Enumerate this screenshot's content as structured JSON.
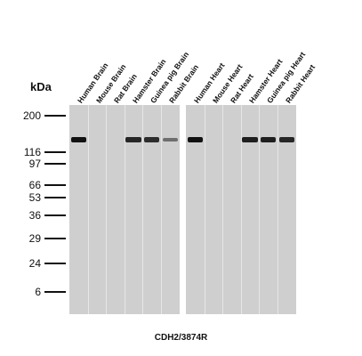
{
  "unit_label": "kDa",
  "caption": "CDH2/3874R",
  "markers": [
    {
      "label": "200",
      "kda": 200
    },
    {
      "label": "116",
      "kda": 116
    },
    {
      "label": "97",
      "kda": 97
    },
    {
      "label": "66",
      "kda": 66
    },
    {
      "label": "53",
      "kda": 53
    },
    {
      "label": "36",
      "kda": 36
    },
    {
      "label": "29",
      "kda": 29
    },
    {
      "label": "24",
      "kda": 24
    },
    {
      "label": "6",
      "kda": 6
    }
  ],
  "panels": [
    {
      "lanes": [
        {
          "label": "Human Brain",
          "band_intensity": 1.0
        },
        {
          "label": "Mouse Brain",
          "band_intensity": 0
        },
        {
          "label": "Rat Brain",
          "band_intensity": 0
        },
        {
          "label": "Hamster Brain",
          "band_intensity": 0.85
        },
        {
          "label": "Guinea pig Brain",
          "band_intensity": 0.8
        },
        {
          "label": "Rabbit Brain",
          "band_intensity": 0.35
        }
      ]
    },
    {
      "lanes": [
        {
          "label": "Human Heart",
          "band_intensity": 1.0
        },
        {
          "label": "Mouse Heart",
          "band_intensity": 0
        },
        {
          "label": "Rat Heart",
          "band_intensity": 0
        },
        {
          "label": "Hamster Heart",
          "band_intensity": 0.9
        },
        {
          "label": "Guinea pig Heart",
          "band_intensity": 0.9
        },
        {
          "label": "Rabbit Heart",
          "band_intensity": 0.85
        }
      ]
    }
  ],
  "band_kda": 130,
  "colors": {
    "band": "#111111",
    "membrane": "#cfcfcf"
  }
}
